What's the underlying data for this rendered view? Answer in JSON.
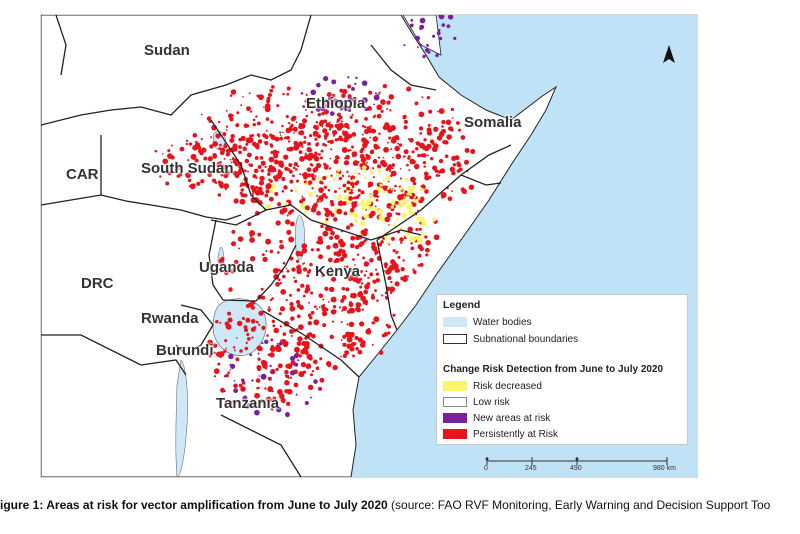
{
  "map": {
    "labels": {
      "sudan": "Sudan",
      "ethiopia": "Ethiopia",
      "somalia": "Somalia",
      "car": "CAR",
      "south_sudan": "South Sudan",
      "uganda": "Uganda",
      "kenya": "Kenya",
      "drc": "DRC",
      "rwanda": "Rwanda",
      "burundi": "Burundi",
      "tanzania": "Tanzania"
    },
    "colors": {
      "land": "#ffffff",
      "sea": "#bfe2f7",
      "water_bodies": "#cfe8f7",
      "boundary": "#222222",
      "subnational": "#9a9a9a",
      "risk_decreased": "#fbf56a",
      "low_risk": "#ffffff",
      "new_areas": "#7a1fa2",
      "persistent": "#e8141c"
    },
    "north_arrow": "north-arrow-icon"
  },
  "legend": {
    "title": "Legend",
    "water_bodies": "Water bodies",
    "subnational": "Subnational boundaries",
    "change_title": "Change Risk Detection from June to July 2020",
    "risk_decreased": "Risk decreased",
    "low_risk": "Low risk",
    "new_areas": "New areas at risk",
    "persistent": "Persistently at Risk"
  },
  "scale": {
    "t0": "0",
    "t1": "245",
    "t2": "490",
    "t3": "980 km"
  },
  "caption": {
    "bold": "igure 1: Areas at risk for vector amplification from June to July 2020",
    "rest": " (source: FAO RVF Monitoring, Early Warning and Decision Support Too"
  }
}
